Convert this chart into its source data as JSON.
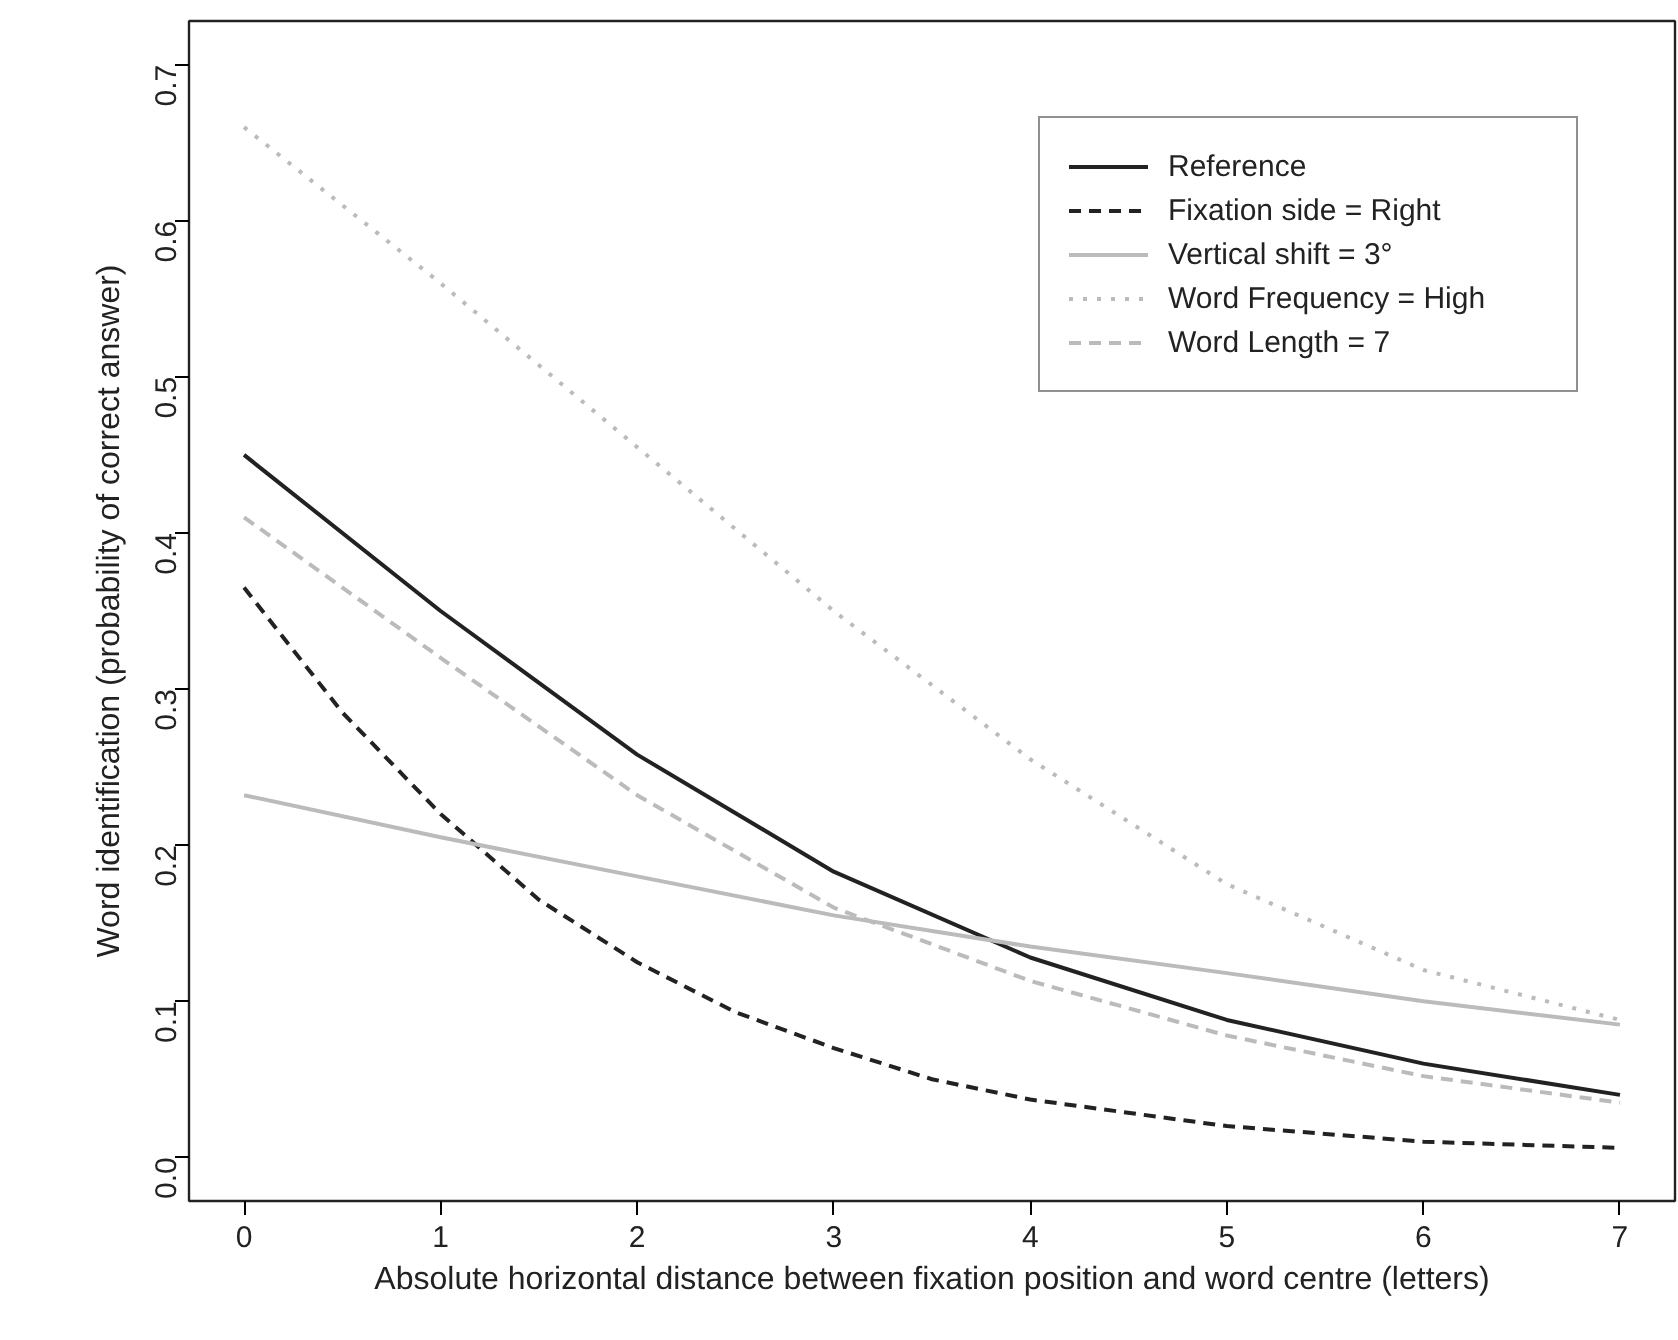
{
  "chart_data": {
    "type": "line",
    "xlabel": "Absolute horizontal distance between fixation position and word centre (letters)",
    "ylabel": "Word identification (probability of correct answer)",
    "x": [
      0,
      1,
      2,
      3,
      4,
      5,
      6,
      7
    ],
    "series": [
      {
        "name": "Reference",
        "color": "#222222",
        "line_style": "solid",
        "values": [
          0.45,
          0.35,
          0.258,
          0.183,
          0.128,
          0.088,
          0.06,
          0.04
        ]
      },
      {
        "name": "Fixation side = Right",
        "color": "#222222",
        "line_style": "dashed",
        "x": [
          0,
          0.5,
          1,
          1.5,
          2,
          2.5,
          3,
          3.5,
          4,
          5,
          6,
          7
        ],
        "values": [
          0.365,
          0.285,
          0.22,
          0.165,
          0.125,
          0.093,
          0.07,
          0.05,
          0.037,
          0.02,
          0.01,
          0.006
        ]
      },
      {
        "name": "Vertical shift = 3°",
        "color": "#bbbbbb",
        "line_style": "solid",
        "values": [
          0.232,
          0.205,
          0.18,
          0.155,
          0.135,
          0.118,
          0.1,
          0.085
        ]
      },
      {
        "name": "Word Frequency = High",
        "color": "#bbbbbb",
        "line_style": "dotted",
        "values": [
          0.66,
          0.56,
          0.455,
          0.35,
          0.255,
          0.175,
          0.12,
          0.088
        ]
      },
      {
        "name": "Word Length = 7",
        "color": "#bbbbbb",
        "line_style": "dashed",
        "values": [
          0.41,
          0.32,
          0.232,
          0.16,
          0.113,
          0.078,
          0.052,
          0.035
        ]
      }
    ],
    "xlim": [
      -0.28,
      7.28
    ],
    "ylim": [
      -0.028,
      0.728
    ],
    "xticks": [
      0,
      1,
      2,
      3,
      4,
      5,
      6,
      7
    ],
    "yticks": [
      {
        "value": 0,
        "label": "0.0"
      },
      0.1,
      0.2,
      0.3,
      0.4,
      0.5,
      0.6,
      0.7
    ],
    "grid": false,
    "legend": "top right"
  }
}
